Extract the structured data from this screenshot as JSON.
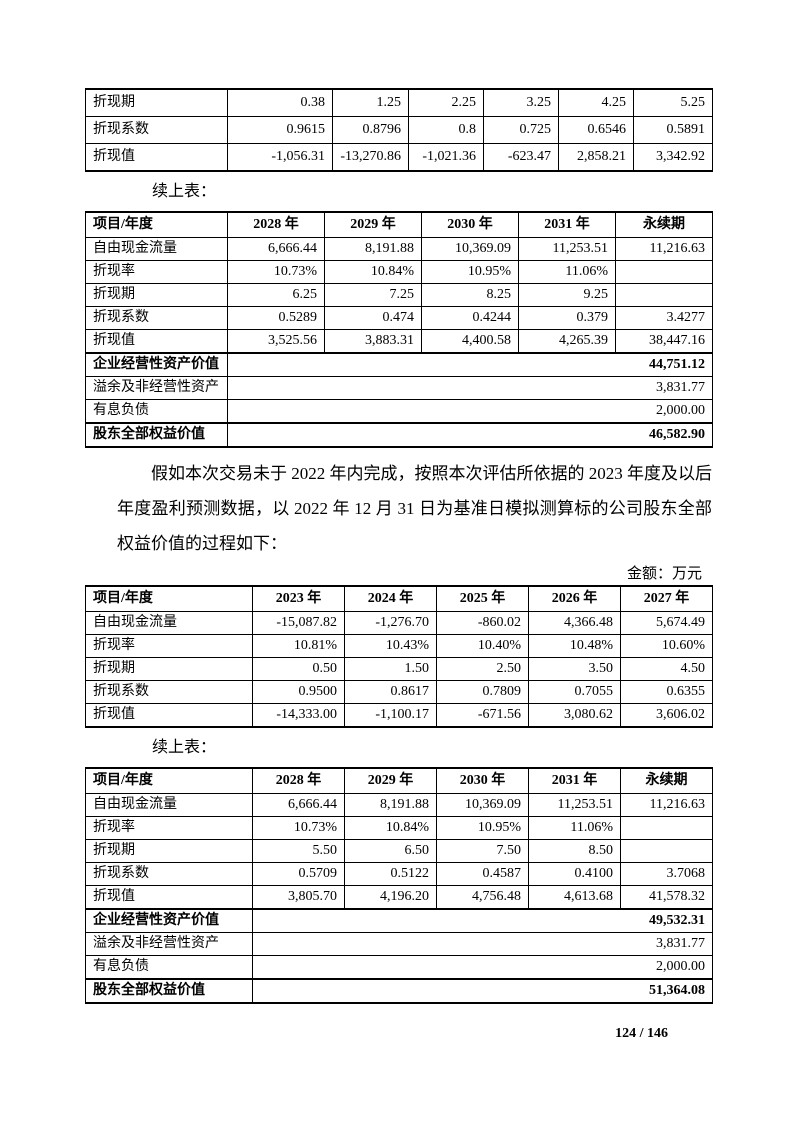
{
  "page": {
    "continued_label": "续上表：",
    "amount_unit_label": "金额：万元",
    "paragraph": "假如本次交易未于 2022 年内完成，按照本次评估所依据的 2023 年度及以后年度盈利预测数据，以 2022 年 12 月 31 日为基准日模拟测算标的公司股东全部权益价值的过程如下：",
    "page_number": "124 / 146"
  },
  "tables": [
    {
      "header": null,
      "rows": [
        {
          "label": "折现期",
          "cells": [
            "0.38",
            "1.25",
            "2.25",
            "3.25",
            "4.25",
            "5.25"
          ]
        },
        {
          "label": "折现系数",
          "cells": [
            "0.9615",
            "0.8796",
            "0.8",
            "0.725",
            "0.6546",
            "0.5891"
          ]
        },
        {
          "label": "折现值",
          "cells": [
            "-1,056.31",
            "-13,270.86",
            "-1,021.36",
            "-623.47",
            "2,858.21",
            "3,342.92"
          ]
        }
      ],
      "summary": []
    },
    {
      "header": [
        "项目/年度",
        "2028 年",
        "2029 年",
        "2030 年",
        "2031 年",
        "永续期"
      ],
      "rows": [
        {
          "label": "自由现金流量",
          "cells": [
            "6,666.44",
            "8,191.88",
            "10,369.09",
            "11,253.51",
            "11,216.63"
          ]
        },
        {
          "label": "折现率",
          "cells": [
            "10.73%",
            "10.84%",
            "10.95%",
            "11.06%",
            ""
          ]
        },
        {
          "label": "折现期",
          "cells": [
            "6.25",
            "7.25",
            "8.25",
            "9.25",
            ""
          ]
        },
        {
          "label": "折现系数",
          "cells": [
            "0.5289",
            "0.474",
            "0.4244",
            "0.379",
            "3.4277"
          ],
          "indent": true
        },
        {
          "label": "折现值",
          "cells": [
            "3,525.56",
            "3,883.31",
            "4,400.58",
            "4,265.39",
            "38,447.16"
          ]
        }
      ],
      "summary": [
        {
          "label": "企业经营性资产价值",
          "value": "44,751.12",
          "bold": true
        },
        {
          "label": "溢余及非经营性资产",
          "value": "3,831.77",
          "bold": false
        },
        {
          "label": "有息负债",
          "value": "2,000.00",
          "bold": false
        },
        {
          "label": "股东全部权益价值",
          "value": "46,582.90",
          "bold": true
        }
      ]
    },
    {
      "header": [
        "项目/年度",
        "2023 年",
        "2024 年",
        "2025 年",
        "2026 年",
        "2027 年"
      ],
      "rows": [
        {
          "label": "自由现金流量",
          "cells": [
            "-15,087.82",
            "-1,276.70",
            "-860.02",
            "4,366.48",
            "5,674.49"
          ]
        },
        {
          "label": "折现率",
          "cells": [
            "10.81%",
            "10.43%",
            "10.40%",
            "10.48%",
            "10.60%"
          ]
        },
        {
          "label": "折现期",
          "cells": [
            "0.50",
            "1.50",
            "2.50",
            "3.50",
            "4.50"
          ]
        },
        {
          "label": "折现系数",
          "cells": [
            "0.9500",
            "0.8617",
            "0.7809",
            "0.7055",
            "0.6355"
          ]
        },
        {
          "label": "折现值",
          "cells": [
            "-14,333.00",
            "-1,100.17",
            "-671.56",
            "3,080.62",
            "3,606.02"
          ]
        }
      ],
      "summary": []
    },
    {
      "header": [
        "项目/年度",
        "2028 年",
        "2029 年",
        "2030 年",
        "2031 年",
        "永续期"
      ],
      "rows": [
        {
          "label": "自由现金流量",
          "cells": [
            "6,666.44",
            "8,191.88",
            "10,369.09",
            "11,253.51",
            "11,216.63"
          ]
        },
        {
          "label": "折现率",
          "cells": [
            "10.73%",
            "10.84%",
            "10.95%",
            "11.06%",
            ""
          ]
        },
        {
          "label": "折现期",
          "cells": [
            "5.50",
            "6.50",
            "7.50",
            "8.50",
            ""
          ]
        },
        {
          "label": "折现系数",
          "cells": [
            "0.5709",
            "0.5122",
            "0.4587",
            "0.4100",
            "3.7068"
          ],
          "indent": true
        },
        {
          "label": "折现值",
          "cells": [
            "3,805.70",
            "4,196.20",
            "4,756.48",
            "4,613.68",
            "41,578.32"
          ]
        }
      ],
      "summary": [
        {
          "label": "企业经营性资产价值",
          "value": "49,532.31",
          "bold": true
        },
        {
          "label": "溢余及非经营性资产",
          "value": "3,831.77",
          "bold": false
        },
        {
          "label": "有息负债",
          "value": "2,000.00",
          "bold": false
        },
        {
          "label": "股东全部权益价值",
          "value": "51,364.08",
          "bold": true
        }
      ]
    }
  ]
}
